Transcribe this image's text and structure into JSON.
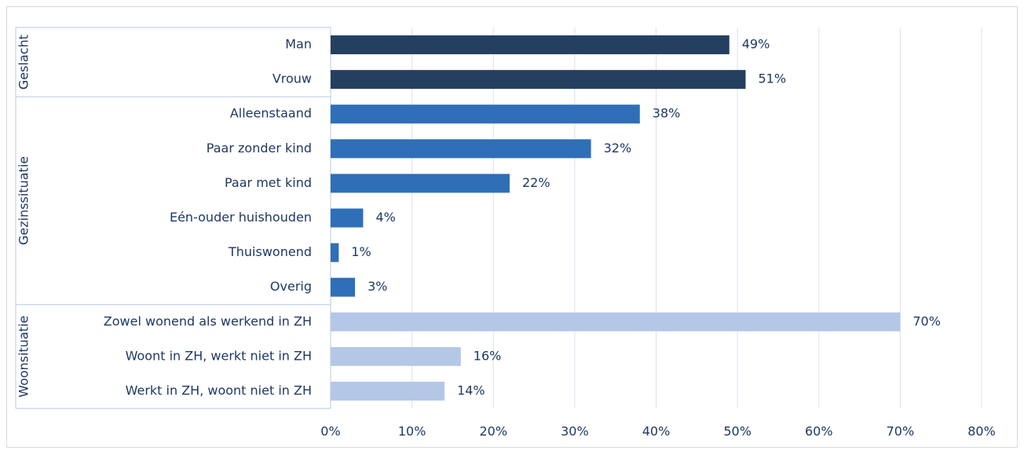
{
  "chart_data": {
    "type": "bar",
    "groups": [
      {
        "name": "Geslacht",
        "color": "#243f60",
        "categories": [
          "Man",
          "Vrouw"
        ],
        "values": [
          49,
          51
        ],
        "value_labels": [
          "49%",
          "51%"
        ]
      },
      {
        "name": "Gezinssituatie",
        "color": "#2e6fb7",
        "categories": [
          "Alleenstaand",
          "Paar zonder kind",
          "Paar met kind",
          "Eén-ouder huishouden",
          "Thuiswonend",
          "Overig"
        ],
        "values": [
          38,
          32,
          22,
          4,
          1,
          3
        ],
        "value_labels": [
          "38%",
          "32%",
          "22%",
          "4%",
          "1%",
          "3%"
        ]
      },
      {
        "name": "Woonsituatie",
        "color": "#b4c7e7",
        "categories": [
          "Zowel wonend als werkend in ZH",
          "Woont in ZH, werkt niet in ZH",
          "Werkt in ZH, woont niet in ZH"
        ],
        "values": [
          70,
          16,
          14
        ],
        "value_labels": [
          "70%",
          "16%",
          "14%"
        ]
      }
    ],
    "xlim": [
      0,
      80
    ],
    "xticks": [
      {
        "value": 0,
        "label": "0%"
      },
      {
        "value": 10,
        "label": "10%"
      },
      {
        "value": 20,
        "label": "20%"
      },
      {
        "value": 30,
        "label": "30%"
      },
      {
        "value": 40,
        "label": "40%"
      },
      {
        "value": 50,
        "label": "50%"
      },
      {
        "value": 60,
        "label": "60%"
      },
      {
        "value": 70,
        "label": "70%"
      },
      {
        "value": 80,
        "label": "80%"
      }
    ],
    "grid": true
  }
}
